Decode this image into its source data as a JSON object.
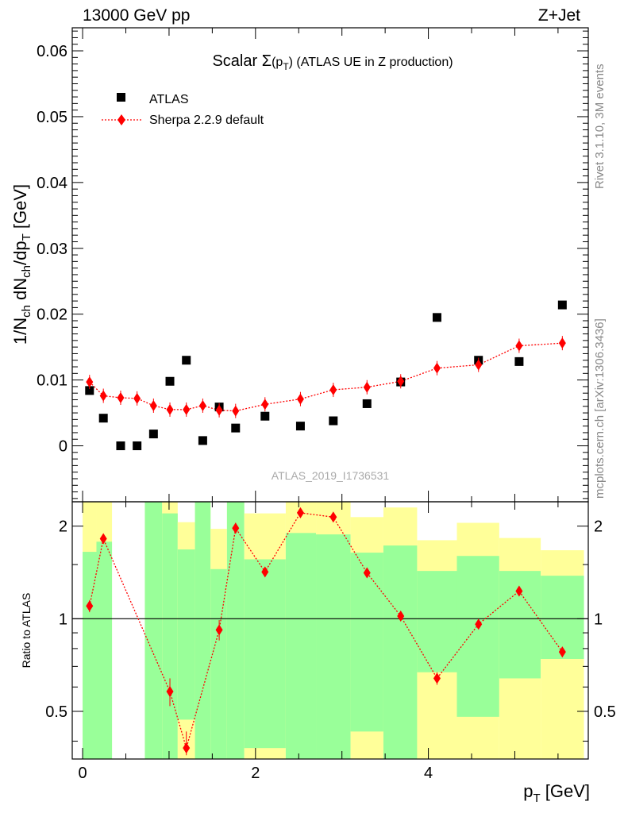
{
  "header": {
    "left": "13000 GeV pp",
    "right": "Z+Jet"
  },
  "side_labels": {
    "rivet": "Rivet 3.1.10,  3M events",
    "mcplots": "mcplots.cern.ch [arXiv:1306.3436]"
  },
  "title": {
    "prefix": "Scalar ",
    "sigma": "Σ",
    "paren_open": "(p",
    "sub": "T",
    "paren_close": ")",
    "suffix": " (ATLAS UE in Z production)"
  },
  "legend": {
    "atlas": "ATLAS",
    "sherpa": "Sherpa 2.2.9 default"
  },
  "watermark": "ATLAS_2019_I1736531",
  "axes": {
    "ylabel_main": {
      "p1": "1/N",
      "s1": "ch",
      "p2": " dN",
      "s2": "ch",
      "p3": "/dp",
      "s3": "T",
      "p4": " [GeV]"
    },
    "ylabel_ratio": "Ratio to ATLAS",
    "xlabel": {
      "p": "p",
      "sub": "T",
      "unit": " [GeV]"
    }
  },
  "colors": {
    "data": "#000000",
    "mc": "#ff0000",
    "band_inner": "#99ff99",
    "band_outer": "#ffff99"
  },
  "chart_data": {
    "type": "scatter",
    "x_range": [
      -0.12,
      5.85
    ],
    "x_ticks": [
      {
        "v": 0,
        "label": "0"
      },
      {
        "v": 2,
        "label": "2"
      },
      {
        "v": 4,
        "label": "4"
      }
    ],
    "main": {
      "y_range": [
        -0.0085,
        0.0635
      ],
      "y_ticks": [
        {
          "v": 0,
          "label": "0"
        },
        {
          "v": 0.01,
          "label": "0.01"
        },
        {
          "v": 0.02,
          "label": "0.02"
        },
        {
          "v": 0.03,
          "label": "0.03"
        },
        {
          "v": 0.04,
          "label": "0.04"
        },
        {
          "v": 0.05,
          "label": "0.05"
        },
        {
          "v": 0.06,
          "label": "0.06"
        }
      ]
    },
    "ratio": {
      "y_range": [
        0.35,
        2.4
      ],
      "y_ticks": [
        {
          "v": 0.5,
          "label": "0.5"
        },
        {
          "v": 1,
          "label": "1"
        },
        {
          "v": 2,
          "label": "2"
        }
      ]
    },
    "series": [
      {
        "name": "ATLAS",
        "x": [
          0.08,
          0.24,
          0.44,
          0.63,
          0.82,
          1.01,
          1.2,
          1.39,
          1.58,
          1.77,
          2.11,
          2.52,
          2.9,
          3.29,
          3.68,
          4.1,
          4.58,
          5.05,
          5.55
        ],
        "y": [
          0.0084,
          0.0042,
          0.0,
          0.0,
          0.0018,
          0.0098,
          0.013,
          0.0008,
          0.0059,
          0.0027,
          0.0045,
          0.003,
          0.0038,
          0.0064,
          0.0097,
          0.0195,
          0.013,
          0.0128,
          0.0214
        ]
      },
      {
        "name": "Sherpa 2.2.9 default",
        "x": [
          0.08,
          0.24,
          0.44,
          0.63,
          0.82,
          1.01,
          1.2,
          1.39,
          1.58,
          1.77,
          2.11,
          2.52,
          2.9,
          3.29,
          3.68,
          4.1,
          4.58,
          5.05,
          5.55
        ],
        "y": [
          0.0097,
          0.0076,
          0.0073,
          0.0072,
          0.0061,
          0.0055,
          0.0055,
          0.0061,
          0.0054,
          0.0053,
          0.0063,
          0.0071,
          0.0085,
          0.0089,
          0.0098,
          0.0118,
          0.0123,
          0.0152,
          0.0156
        ]
      }
    ],
    "ratio_points": {
      "x": [
        0.08,
        0.24,
        1.01,
        1.2,
        1.58,
        1.77,
        2.11,
        2.52,
        2.9,
        3.29,
        3.68,
        4.1,
        4.58,
        5.05,
        5.55
      ],
      "y": [
        1.1,
        1.82,
        0.58,
        0.38,
        0.92,
        1.97,
        1.42,
        2.21,
        2.14,
        1.41,
        1.02,
        0.64,
        0.96,
        1.23,
        0.78
      ],
      "err": [
        0.05,
        0.05,
        0.06,
        0.05,
        0.07,
        0.08,
        0.04,
        0.02,
        0.04,
        0.04,
        0.03,
        0.03,
        0.03,
        0.03,
        0.03
      ]
    },
    "bands": [
      {
        "x0": 0.0,
        "x1": 0.16,
        "in_lo": 0.35,
        "in_hi": 1.65,
        "out_lo": 0.35,
        "out_hi": 2.4
      },
      {
        "x0": 0.16,
        "x1": 0.34,
        "in_lo": 0.35,
        "in_hi": 1.78,
        "out_lo": 0.35,
        "out_hi": 2.4
      },
      {
        "x0": 0.72,
        "x1": 0.92,
        "in_lo": 0.35,
        "in_hi": 2.4,
        "out_lo": 0.35,
        "out_hi": 2.4
      },
      {
        "x0": 0.92,
        "x1": 1.1,
        "in_lo": 0.35,
        "in_hi": 2.2,
        "out_lo": 0.35,
        "out_hi": 2.4
      },
      {
        "x0": 1.1,
        "x1": 1.3,
        "in_lo": 0.47,
        "in_hi": 1.68,
        "out_lo": 0.35,
        "out_hi": 2.06
      },
      {
        "x0": 1.3,
        "x1": 1.48,
        "in_lo": 0.35,
        "in_hi": 2.4,
        "out_lo": 0.35,
        "out_hi": 2.4
      },
      {
        "x0": 1.48,
        "x1": 1.67,
        "in_lo": 0.35,
        "in_hi": 1.45,
        "out_lo": 0.35,
        "out_hi": 1.96
      },
      {
        "x0": 1.67,
        "x1": 1.87,
        "in_lo": 0.35,
        "in_hi": 2.4,
        "out_lo": 0.35,
        "out_hi": 2.4
      },
      {
        "x0": 1.87,
        "x1": 2.35,
        "in_lo": 0.38,
        "in_hi": 1.56,
        "out_lo": 0.35,
        "out_hi": 2.2
      },
      {
        "x0": 2.35,
        "x1": 2.7,
        "in_lo": 0.35,
        "in_hi": 1.9,
        "out_lo": 0.35,
        "out_hi": 2.4
      },
      {
        "x0": 2.7,
        "x1": 3.1,
        "in_lo": 0.35,
        "in_hi": 1.88,
        "out_lo": 0.35,
        "out_hi": 2.4
      },
      {
        "x0": 3.1,
        "x1": 3.48,
        "in_lo": 0.43,
        "in_hi": 1.64,
        "out_lo": 0.35,
        "out_hi": 2.14
      },
      {
        "x0": 3.48,
        "x1": 3.87,
        "in_lo": 0.35,
        "in_hi": 1.73,
        "out_lo": 0.35,
        "out_hi": 2.3
      },
      {
        "x0": 3.87,
        "x1": 4.33,
        "in_lo": 0.67,
        "in_hi": 1.43,
        "out_lo": 0.35,
        "out_hi": 1.8
      },
      {
        "x0": 4.33,
        "x1": 4.82,
        "in_lo": 0.48,
        "in_hi": 1.6,
        "out_lo": 0.35,
        "out_hi": 2.05
      },
      {
        "x0": 4.82,
        "x1": 5.3,
        "in_lo": 0.64,
        "in_hi": 1.43,
        "out_lo": 0.35,
        "out_hi": 1.83
      },
      {
        "x0": 5.3,
        "x1": 5.8,
        "in_lo": 0.74,
        "in_hi": 1.38,
        "out_lo": 0.35,
        "out_hi": 1.67
      }
    ]
  }
}
